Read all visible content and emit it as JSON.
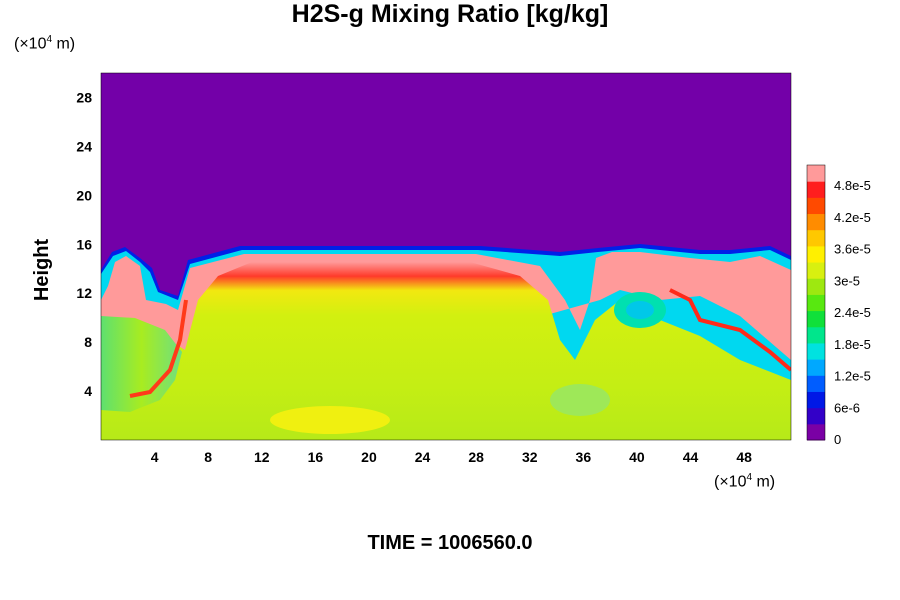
{
  "chart_data": {
    "type": "heatmap",
    "title": "H2S-g Mixing Ratio [kg/kg]",
    "ylabel": "Height",
    "x_unit": "(×10^4 m)",
    "y_unit": "(×10^4 m)",
    "xlim": [
      0,
      51.5
    ],
    "ylim": [
      0,
      30
    ],
    "x_ticks": [
      "4",
      "8",
      "12",
      "16",
      "20",
      "24",
      "28",
      "32",
      "36",
      "40",
      "44",
      "48"
    ],
    "y_ticks": [
      "4",
      "8",
      "12",
      "16",
      "20",
      "24",
      "28"
    ],
    "colorbar": {
      "min": 0,
      "max": 5.2e-05,
      "tick_labels": [
        "0",
        "6e-6",
        "1.2e-5",
        "1.8e-5",
        "2.4e-5",
        "3e-5",
        "3.6e-5",
        "4.2e-5",
        "4.8e-5"
      ],
      "colors": [
        "#7a00a5",
        "#3300c8",
        "#0018e6",
        "#005dff",
        "#00a8ff",
        "#00e2e0",
        "#00e68c",
        "#10e03a",
        "#58e810",
        "#9ee810",
        "#d8f010",
        "#fff000",
        "#ffc800",
        "#ff8c00",
        "#ff4a00",
        "#ff1e1e",
        "#ff9a9a"
      ]
    },
    "annotation": "TIME = 1006560.0"
  },
  "colors": {
    "background_top": "#7300a8",
    "plume_body": "#c8f010",
    "plume_edge": "#ff9a9a"
  }
}
